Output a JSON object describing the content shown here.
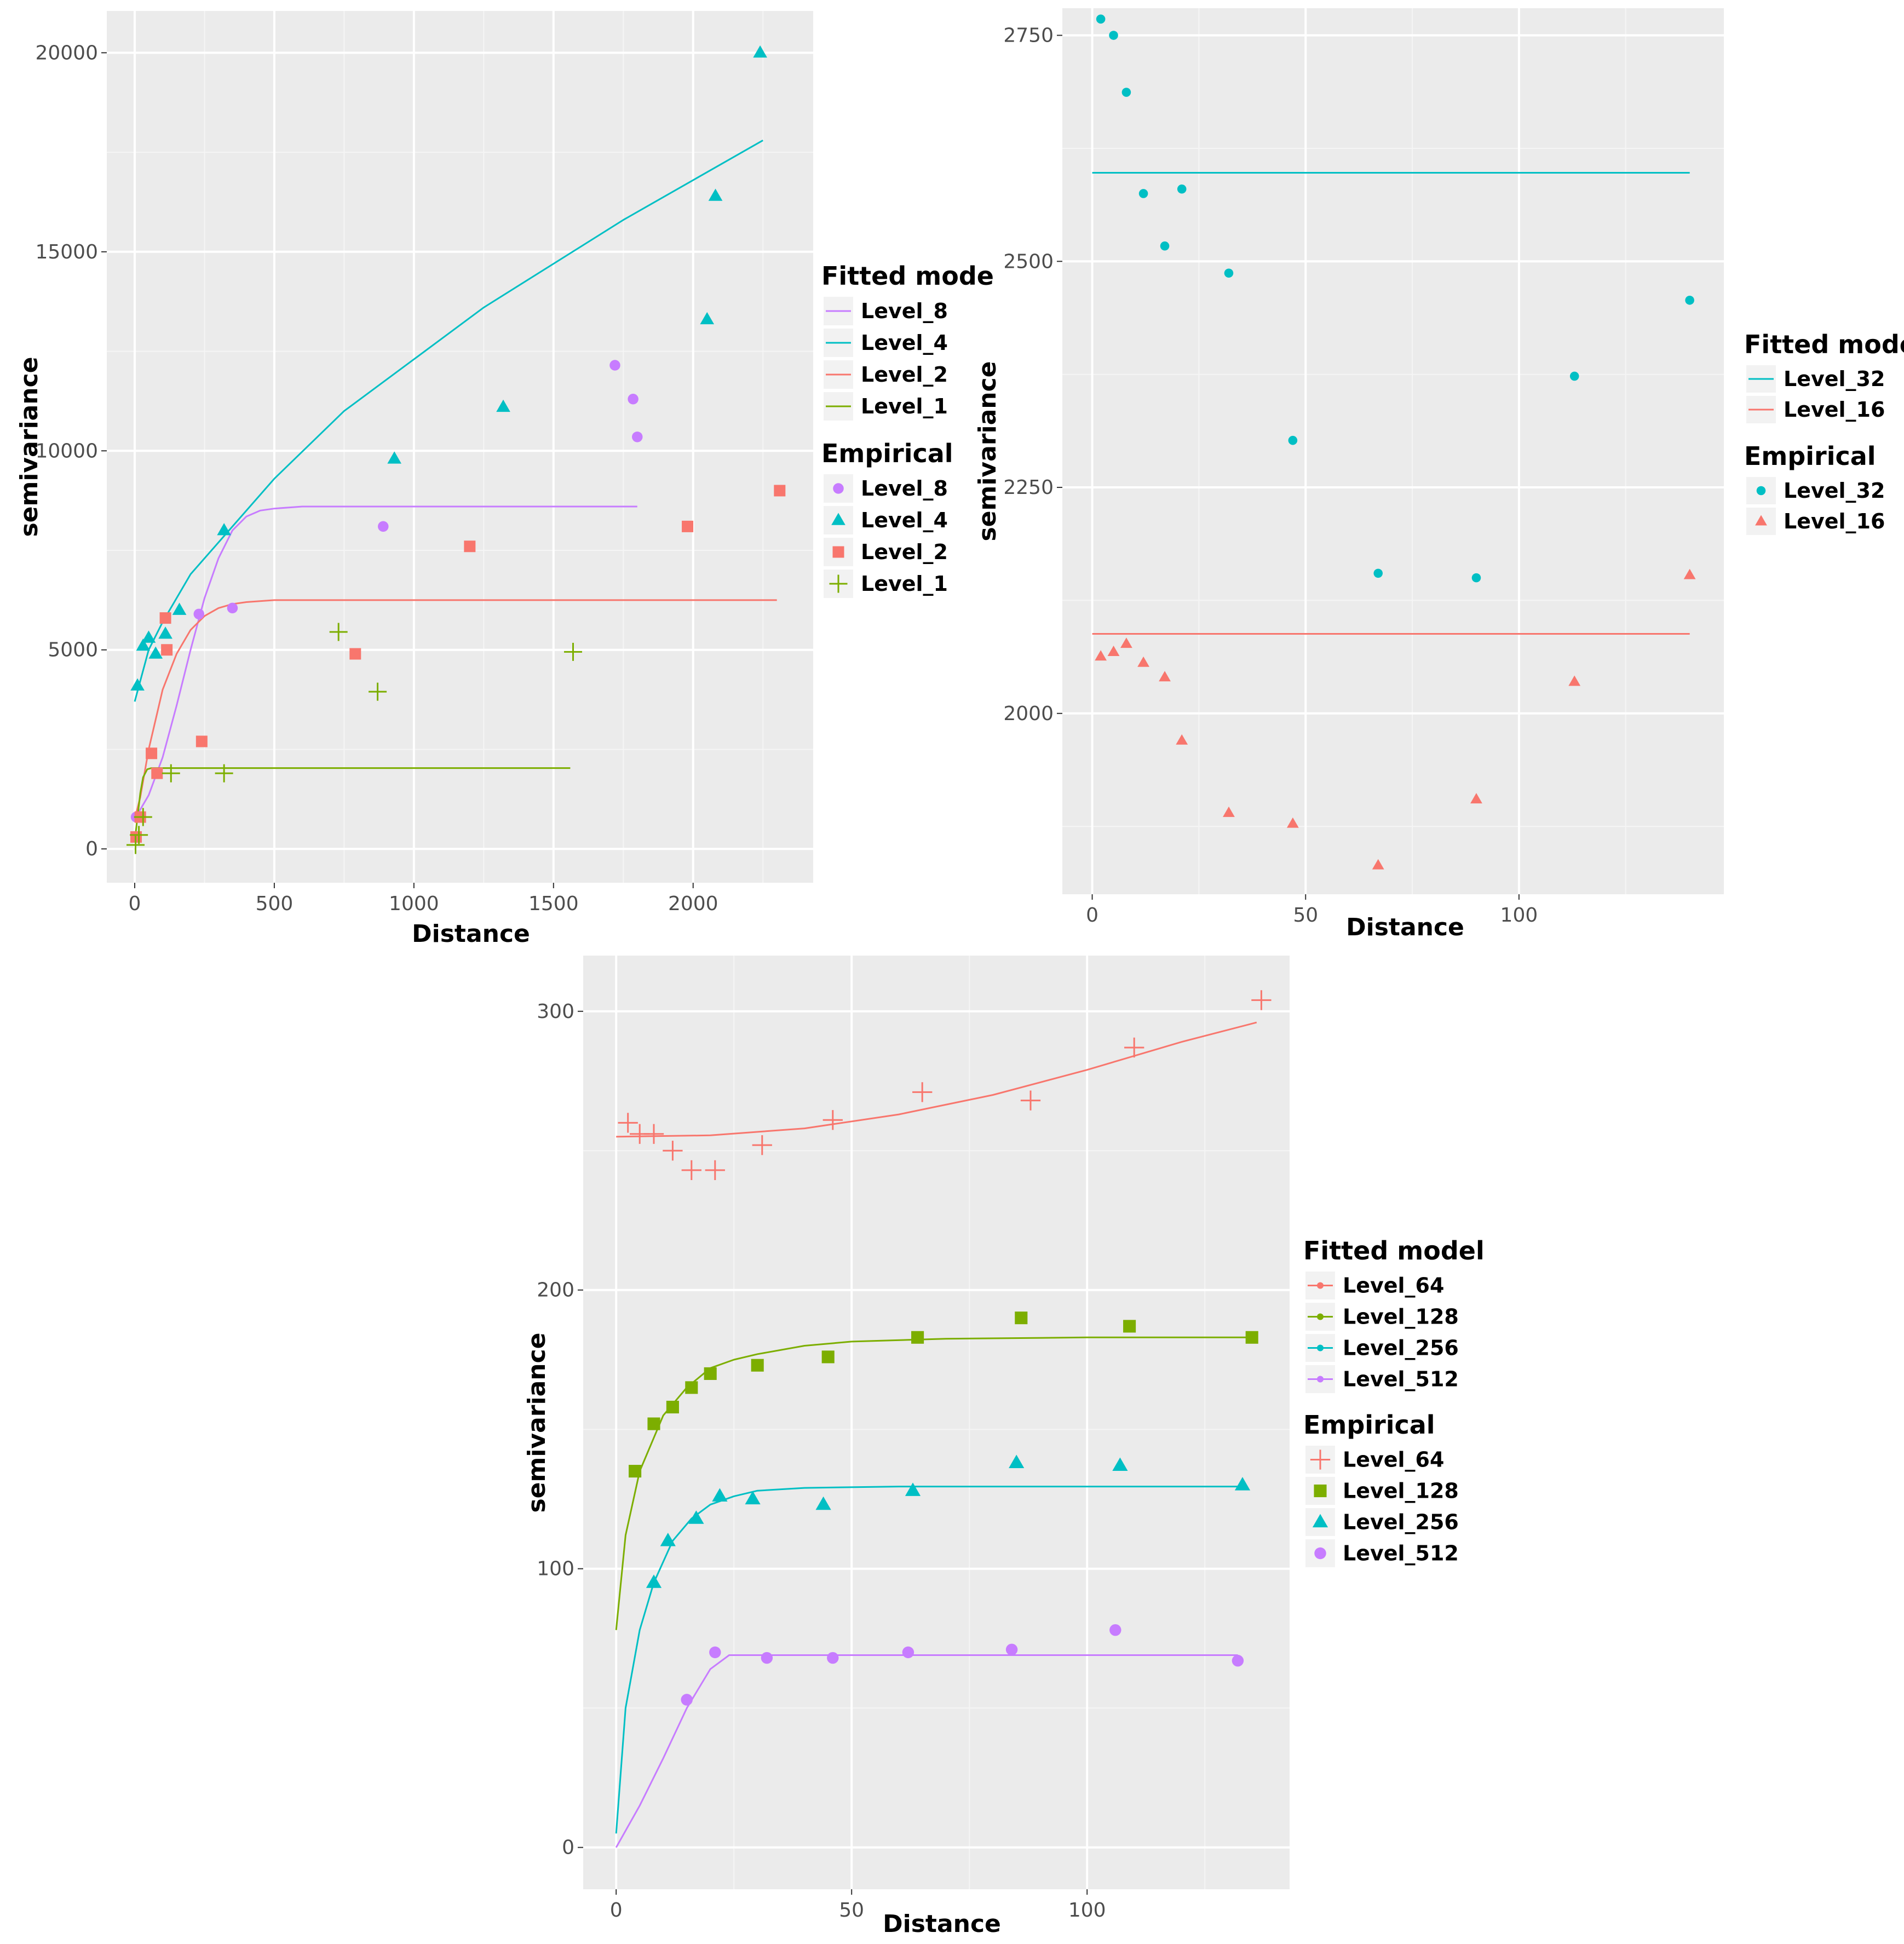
{
  "chart_data": [
    {
      "type": "scatter",
      "id": "panel1",
      "xlabel": "Distance",
      "ylabel": "semivariance",
      "xlim": [
        -100,
        2430
      ],
      "ylim": [
        -850,
        21050
      ],
      "xticks": [
        0,
        500,
        1000,
        1500,
        2000
      ],
      "yticks": [
        0,
        5000,
        10000,
        15000,
        20000
      ],
      "legend": {
        "position": "right",
        "fitted_title": "Fitted mode",
        "fitted_labels": [
          "Level_8",
          "Level_4",
          "Level_2",
          "Level_1"
        ],
        "fitted_colors": [
          "#c77cff",
          "#00bfc4",
          "#f8766d",
          "#7cae00"
        ],
        "empirical_title": "Empirical",
        "empirical_labels": [
          "Level_8",
          "Level_4",
          "Level_2",
          "Level_1"
        ],
        "empirical_colors": [
          "#c77cff",
          "#00bfc4",
          "#f8766d",
          "#7cae00"
        ],
        "empirical_shapes": [
          "circle",
          "triangle",
          "square",
          "plus"
        ]
      },
      "fitted": [
        {
          "name": "Level_8",
          "color": "#c77cff",
          "points": [
            [
              0,
              750
            ],
            [
              50,
              1350
            ],
            [
              100,
              2300
            ],
            [
              150,
              3600
            ],
            [
              200,
              5000
            ],
            [
              250,
              6300
            ],
            [
              300,
              7300
            ],
            [
              350,
              8000
            ],
            [
              400,
              8350
            ],
            [
              450,
              8500
            ],
            [
              500,
              8550
            ],
            [
              600,
              8600
            ],
            [
              800,
              8600
            ],
            [
              1000,
              8600
            ],
            [
              1800,
              8600
            ]
          ]
        },
        {
          "name": "Level_4",
          "color": "#00bfc4",
          "points": [
            [
              0,
              3700
            ],
            [
              50,
              5000
            ],
            [
              100,
              5700
            ],
            [
              200,
              6900
            ],
            [
              300,
              7700
            ],
            [
              500,
              9300
            ],
            [
              750,
              11000
            ],
            [
              1000,
              12300
            ],
            [
              1250,
              13600
            ],
            [
              1500,
              14700
            ],
            [
              1750,
              15800
            ],
            [
              2000,
              16800
            ],
            [
              2250,
              17800
            ]
          ]
        },
        {
          "name": "Level_2",
          "color": "#f8766d",
          "points": [
            [
              0,
              750
            ],
            [
              20,
              1300
            ],
            [
              50,
              2500
            ],
            [
              80,
              3400
            ],
            [
              100,
              4000
            ],
            [
              150,
              4900
            ],
            [
              200,
              5500
            ],
            [
              250,
              5850
            ],
            [
              300,
              6050
            ],
            [
              350,
              6150
            ],
            [
              400,
              6200
            ],
            [
              500,
              6250
            ],
            [
              2300,
              6250
            ]
          ]
        },
        {
          "name": "Level_1",
          "color": "#7cae00",
          "points": [
            [
              0,
              200
            ],
            [
              10,
              800
            ],
            [
              20,
              1400
            ],
            [
              30,
              1800
            ],
            [
              45,
              2000
            ],
            [
              60,
              2030
            ],
            [
              1560,
              2030
            ]
          ]
        }
      ],
      "empirical": [
        {
          "name": "Level_8",
          "color": "#c77cff",
          "shape": "circle",
          "points": [
            [
              5,
              800
            ],
            [
              230,
              5900
            ],
            [
              350,
              6050
            ],
            [
              890,
              8100
            ],
            [
              1720,
              12150
            ],
            [
              1785,
              11300
            ],
            [
              1800,
              10350
            ]
          ]
        },
        {
          "name": "Level_4",
          "color": "#00bfc4",
          "shape": "triangle",
          "points": [
            [
              10,
              4100
            ],
            [
              30,
              5100
            ],
            [
              50,
              5300
            ],
            [
              75,
              4900
            ],
            [
              110,
              5400
            ],
            [
              160,
              6000
            ],
            [
              320,
              8000
            ],
            [
              930,
              9800
            ],
            [
              1320,
              11100
            ],
            [
              2050,
              13300
            ],
            [
              2080,
              16400
            ],
            [
              2240,
              20000
            ]
          ]
        },
        {
          "name": "Level_2",
          "color": "#f8766d",
          "shape": "square",
          "points": [
            [
              5,
              300
            ],
            [
              20,
              800
            ],
            [
              60,
              2400
            ],
            [
              80,
              1900
            ],
            [
              110,
              5800
            ],
            [
              115,
              5000
            ],
            [
              240,
              2700
            ],
            [
              790,
              4900
            ],
            [
              1200,
              7600
            ],
            [
              1980,
              8100
            ],
            [
              2310,
              9000
            ]
          ]
        },
        {
          "name": "Level_1",
          "color": "#7cae00",
          "shape": "plus",
          "points": [
            [
              3,
              100
            ],
            [
              15,
              350
            ],
            [
              30,
              800
            ],
            [
              130,
              1900
            ],
            [
              320,
              1900
            ],
            [
              730,
              5450
            ],
            [
              870,
              3950
            ],
            [
              1570,
              4950
            ]
          ]
        }
      ]
    },
    {
      "type": "scatter",
      "id": "panel2",
      "xlabel": "Distance",
      "ylabel": "semivariance",
      "xlim": [
        -7,
        148
      ],
      "ylim": [
        1800,
        2780
      ],
      "xticks": [
        0,
        50,
        100
      ],
      "yticks": [
        2000,
        2250,
        2500,
        2750
      ],
      "legend": {
        "position": "right",
        "fitted_title": "Fitted model",
        "fitted_labels": [
          "Level_32",
          "Level_16"
        ],
        "fitted_colors": [
          "#00bfc4",
          "#f8766d"
        ],
        "empirical_title": "Empirical",
        "empirical_labels": [
          "Level_32",
          "Level_16"
        ],
        "empirical_colors": [
          "#00bfc4",
          "#f8766d"
        ],
        "empirical_shapes": [
          "circle",
          "triangle"
        ]
      },
      "fitted": [
        {
          "name": "Level_32",
          "color": "#00bfc4",
          "points": [
            [
              0,
              2598
            ],
            [
              140,
              2598
            ]
          ]
        },
        {
          "name": "Level_16",
          "color": "#f8766d",
          "points": [
            [
              0,
              2088
            ],
            [
              140,
              2088
            ]
          ]
        }
      ],
      "empirical": [
        {
          "name": "Level_32",
          "color": "#00bfc4",
          "shape": "circle",
          "points": [
            [
              2,
              2768
            ],
            [
              5,
              2750
            ],
            [
              8,
              2687
            ],
            [
              12,
              2575
            ],
            [
              17,
              2517
            ],
            [
              21,
              2580
            ],
            [
              32,
              2487
            ],
            [
              47,
              2302
            ],
            [
              67,
              2155
            ],
            [
              90,
              2150
            ],
            [
              113,
              2373
            ],
            [
              140,
              2457
            ]
          ]
        },
        {
          "name": "Level_16",
          "color": "#f8766d",
          "shape": "triangle",
          "points": [
            [
              2,
              2063
            ],
            [
              5,
              2068
            ],
            [
              8,
              2077
            ],
            [
              12,
              2056
            ],
            [
              17,
              2040
            ],
            [
              21,
              1970
            ],
            [
              32,
              1890
            ],
            [
              47,
              1878
            ],
            [
              67,
              1832
            ],
            [
              90,
              1905
            ],
            [
              113,
              2035
            ],
            [
              140,
              2153
            ]
          ]
        }
      ]
    },
    {
      "type": "scatter",
      "id": "panel3",
      "xlabel": "Distance",
      "ylabel": "semivariance",
      "xlim": [
        -7,
        143
      ],
      "ylim": [
        -15,
        320
      ],
      "xticks": [
        0,
        50,
        100
      ],
      "yticks": [
        0,
        100,
        200,
        300
      ],
      "legend": {
        "position": "right",
        "fitted_title": "Fitted model",
        "fitted_labels": [
          "Level_64",
          "Level_128",
          "Level_256",
          "Level_512"
        ],
        "fitted_colors": [
          "#f8766d",
          "#7cae00",
          "#00bfc4",
          "#c77cff"
        ],
        "empirical_title": "Empirical",
        "empirical_labels": [
          "Level_64",
          "Level_128",
          "Level_256",
          "Level_512"
        ],
        "empirical_colors": [
          "#f8766d",
          "#7cae00",
          "#00bfc4",
          "#c77cff"
        ],
        "empirical_shapes": [
          "plus",
          "square",
          "triangle",
          "circle"
        ]
      },
      "fitted": [
        {
          "name": "Level_64",
          "color": "#f8766d",
          "points": [
            [
              0,
              255
            ],
            [
              20,
              255.5
            ],
            [
              40,
              258
            ],
            [
              60,
              263
            ],
            [
              80,
              270
            ],
            [
              100,
              279
            ],
            [
              120,
              289
            ],
            [
              136,
              296
            ]
          ]
        },
        {
          "name": "Level_128",
          "color": "#7cae00",
          "points": [
            [
              0,
              78
            ],
            [
              2,
              112
            ],
            [
              5,
              135
            ],
            [
              10,
              155
            ],
            [
              15,
              165
            ],
            [
              20,
              172
            ],
            [
              25,
              175
            ],
            [
              30,
              177
            ],
            [
              40,
              180
            ],
            [
              50,
              181.5
            ],
            [
              70,
              182.5
            ],
            [
              100,
              183
            ],
            [
              135,
              183
            ]
          ]
        },
        {
          "name": "Level_256",
          "color": "#00bfc4",
          "points": [
            [
              0,
              5
            ],
            [
              2,
              50
            ],
            [
              5,
              78
            ],
            [
              8,
              95
            ],
            [
              12,
              110
            ],
            [
              16,
              118
            ],
            [
              20,
              123
            ],
            [
              25,
              126
            ],
            [
              30,
              128
            ],
            [
              40,
              129
            ],
            [
              60,
              129.5
            ],
            [
              133,
              129.5
            ]
          ]
        },
        {
          "name": "Level_512",
          "color": "#c77cff",
          "points": [
            [
              0,
              0
            ],
            [
              5,
              15
            ],
            [
              10,
              32
            ],
            [
              15,
              50
            ],
            [
              20,
              64
            ],
            [
              24,
              69
            ],
            [
              60,
              69
            ],
            [
              132,
              69
            ]
          ]
        }
      ],
      "empirical": [
        {
          "name": "Level_64",
          "color": "#f8766d",
          "shape": "plus",
          "points": [
            [
              2.5,
              260
            ],
            [
              5,
              256
            ],
            [
              8,
              256
            ],
            [
              12,
              250
            ],
            [
              16,
              243
            ],
            [
              21,
              243
            ],
            [
              31,
              252
            ],
            [
              46,
              261
            ],
            [
              65,
              271
            ],
            [
              88,
              268
            ],
            [
              110,
              287
            ],
            [
              137,
              304
            ]
          ]
        },
        {
          "name": "Level_128",
          "color": "#7cae00",
          "shape": "square",
          "points": [
            [
              4,
              135
            ],
            [
              8,
              152
            ],
            [
              12,
              158
            ],
            [
              16,
              165
            ],
            [
              20,
              170
            ],
            [
              30,
              173
            ],
            [
              45,
              176
            ],
            [
              64,
              183
            ],
            [
              86,
              190
            ],
            [
              109,
              187
            ],
            [
              135,
              183
            ]
          ]
        },
        {
          "name": "Level_256",
          "color": "#00bfc4",
          "shape": "triangle",
          "points": [
            [
              8,
              95
            ],
            [
              11,
              110
            ],
            [
              17,
              118
            ],
            [
              22,
              126
            ],
            [
              29,
              125
            ],
            [
              44,
              123
            ],
            [
              63,
              128
            ],
            [
              85,
              138
            ],
            [
              107,
              137
            ],
            [
              133,
              130
            ]
          ]
        },
        {
          "name": "Level_512",
          "color": "#c77cff",
          "shape": "circle",
          "points": [
            [
              15,
              53
            ],
            [
              21,
              70
            ],
            [
              32,
              68
            ],
            [
              46,
              68
            ],
            [
              62,
              70
            ],
            [
              84,
              71
            ],
            [
              106,
              78
            ],
            [
              132,
              67
            ]
          ]
        }
      ]
    }
  ]
}
